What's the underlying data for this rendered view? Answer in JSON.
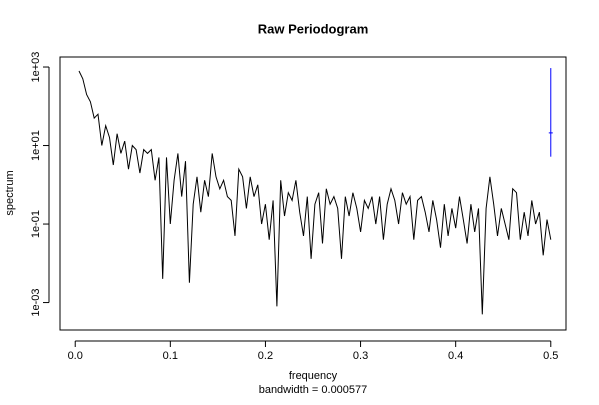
{
  "chart_data": {
    "type": "line",
    "title": "Raw Periodogram",
    "x_label": "frequency",
    "subtitle": "bandwidth = 0.000577",
    "y_label": "spectrum",
    "log_y": true,
    "grid": false,
    "xlim": [
      -0.016,
      0.516
    ],
    "ylim": [
      0.0002,
      1800
    ],
    "xticks": [
      {
        "value": 0,
        "label": "0.0"
      },
      0.1,
      0.2,
      0.3,
      0.4,
      0.5
    ],
    "yticks": [
      {
        "value": 0.001,
        "label": "1e-03"
      },
      {
        "value": 0.1,
        "label": "1e-01"
      },
      {
        "value": 10,
        "label": "1e+01"
      },
      {
        "value": 1000,
        "label": "1e+03"
      }
    ],
    "x": [
      0.004,
      0.008,
      0.012,
      0.016,
      0.02,
      0.024,
      0.028,
      0.032,
      0.036,
      0.04,
      0.044,
      0.048,
      0.052,
      0.056,
      0.06,
      0.064,
      0.068,
      0.072,
      0.076,
      0.08,
      0.084,
      0.088,
      0.092,
      0.096,
      0.1,
      0.104,
      0.108,
      0.112,
      0.116,
      0.12,
      0.124,
      0.128,
      0.132,
      0.136,
      0.14,
      0.144,
      0.148,
      0.152,
      0.156,
      0.16,
      0.164,
      0.168,
      0.172,
      0.176,
      0.18,
      0.184,
      0.188,
      0.192,
      0.196,
      0.2,
      0.204,
      0.208,
      0.212,
      0.216,
      0.22,
      0.224,
      0.228,
      0.232,
      0.236,
      0.24,
      0.244,
      0.248,
      0.252,
      0.256,
      0.26,
      0.264,
      0.268,
      0.272,
      0.276,
      0.28,
      0.284,
      0.288,
      0.292,
      0.296,
      0.3,
      0.304,
      0.308,
      0.312,
      0.316,
      0.32,
      0.324,
      0.328,
      0.332,
      0.336,
      0.34,
      0.344,
      0.348,
      0.352,
      0.356,
      0.36,
      0.364,
      0.368,
      0.372,
      0.376,
      0.38,
      0.384,
      0.388,
      0.392,
      0.396,
      0.4,
      0.404,
      0.408,
      0.412,
      0.416,
      0.42,
      0.424,
      0.428,
      0.432,
      0.436,
      0.44,
      0.444,
      0.448,
      0.452,
      0.456,
      0.46,
      0.464,
      0.468,
      0.472,
      0.476,
      0.48,
      0.484,
      0.488,
      0.492,
      0.496,
      0.5
    ],
    "series": [
      {
        "color": "#000000",
        "values": [
          790,
          500,
          200,
          130,
          50,
          63,
          10,
          32,
          16,
          3.2,
          20,
          6.3,
          13,
          2.5,
          10,
          7.9,
          2,
          7.9,
          6.3,
          7.9,
          1.3,
          5,
          0.004,
          5,
          0.1,
          1.3,
          6.3,
          0.5,
          4,
          0.0032,
          0.32,
          1.6,
          0.2,
          1.3,
          0.5,
          6.3,
          1.6,
          0.79,
          1.3,
          0.5,
          0.4,
          0.05,
          2.5,
          1.6,
          0.25,
          1.6,
          0.5,
          1,
          0.1,
          0.32,
          0.04,
          0.4,
          0.0008,
          1.3,
          0.16,
          0.63,
          0.4,
          1.3,
          0.2,
          0.05,
          0.5,
          0.013,
          0.32,
          0.63,
          0.032,
          0.79,
          0.32,
          0.5,
          0.25,
          0.013,
          0.5,
          0.16,
          0.63,
          0.25,
          0.063,
          0.4,
          0.25,
          0.5,
          0.1,
          0.5,
          0.04,
          0.32,
          0.79,
          0.4,
          0.1,
          0.63,
          0.32,
          0.5,
          0.04,
          0.4,
          0.5,
          0.2,
          0.063,
          0.4,
          0.13,
          0.025,
          0.32,
          0.05,
          0.25,
          0.079,
          0.5,
          0.13,
          0.032,
          0.32,
          0.063,
          0.25,
          0.0005,
          0.25,
          1.6,
          0.32,
          0.05,
          0.25,
          0.1,
          0.04,
          0.79,
          0.63,
          0.04,
          0.2,
          0.05,
          0.4,
          0.1,
          0.2,
          0.016,
          0.13,
          0.04
        ]
      }
    ],
    "ci_bar": {
      "x": 0.5,
      "lower": 5.2,
      "center": 21,
      "upper": 940,
      "color": "#0000ff"
    }
  }
}
